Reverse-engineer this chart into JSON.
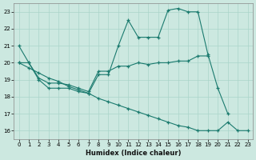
{
  "xlabel": "Humidex (Indice chaleur)",
  "bg_color": "#cce8e0",
  "line_color": "#1a7a6e",
  "grid_color": "#aad4ca",
  "xlim": [
    -0.5,
    23.5
  ],
  "ylim": [
    15.5,
    23.5
  ],
  "yticks": [
    16,
    17,
    18,
    19,
    20,
    21,
    22,
    23
  ],
  "xticks": [
    0,
    1,
    2,
    3,
    4,
    5,
    6,
    7,
    8,
    9,
    10,
    11,
    12,
    13,
    14,
    15,
    16,
    17,
    18,
    19,
    20,
    21,
    22,
    23
  ],
  "series": [
    {
      "x": [
        0,
        1,
        2,
        3,
        4,
        5,
        6,
        7,
        8,
        9,
        10,
        11,
        12,
        13,
        14,
        15,
        16,
        17,
        18,
        19,
        20,
        21
      ],
      "y": [
        21.0,
        20.0,
        19.0,
        18.5,
        18.5,
        18.5,
        18.3,
        18.2,
        19.3,
        19.3,
        21.0,
        22.5,
        21.5,
        21.5,
        21.5,
        23.1,
        23.2,
        23.0,
        23.0,
        20.5,
        18.5,
        17.0
      ]
    },
    {
      "x": [
        0,
        1,
        2,
        3,
        4,
        5,
        6,
        7,
        8,
        9,
        10,
        11,
        12,
        13,
        14,
        15,
        16,
        17,
        18,
        19
      ],
      "y": [
        20.0,
        20.0,
        19.1,
        18.8,
        18.8,
        18.7,
        18.5,
        18.3,
        19.5,
        19.5,
        19.8,
        19.8,
        20.0,
        19.9,
        20.0,
        20.0,
        20.1,
        20.1,
        20.4,
        20.4
      ]
    },
    {
      "x": [
        0,
        1,
        2,
        3,
        4,
        5,
        6,
        7,
        8,
        9,
        10,
        11,
        12,
        13,
        14,
        15,
        16,
        17,
        18,
        19,
        20,
        21,
        22,
        23
      ],
      "y": [
        20.0,
        19.7,
        19.4,
        19.1,
        18.9,
        18.6,
        18.4,
        18.2,
        17.9,
        17.7,
        17.5,
        17.3,
        17.1,
        16.9,
        16.7,
        16.5,
        16.3,
        16.2,
        16.0,
        16.0,
        16.0,
        16.5,
        16.0,
        16.0
      ]
    }
  ]
}
